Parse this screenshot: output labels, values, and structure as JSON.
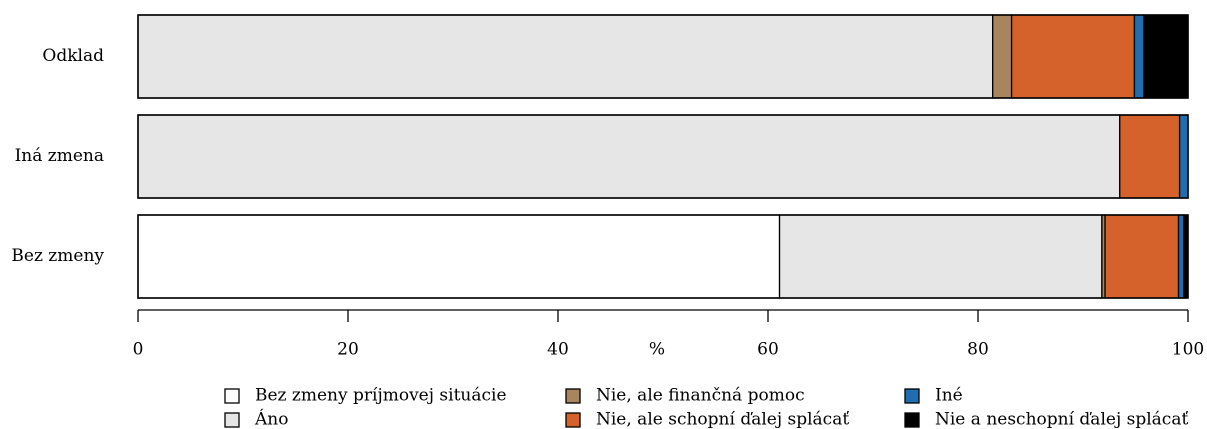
{
  "chart_data": {
    "type": "stacked-barh",
    "categories": [
      "Odklad",
      "Iná zmena",
      "Bez zmeny"
    ],
    "series": [
      {
        "name": "Bez zmeny príjmovej situácie",
        "color": "#ffffff",
        "values": [
          0,
          0,
          61.1
        ]
      },
      {
        "name": "Áno",
        "color": "#e6e6e6",
        "values": [
          81.4,
          93.5,
          30.7
        ]
      },
      {
        "name": "Nie, ale finančná pomoc",
        "color": "#a8845f",
        "values": [
          1.8,
          0,
          0.3
        ]
      },
      {
        "name": "Nie, ale schopní ďalej splácať",
        "color": "#d6622b",
        "values": [
          11.7,
          5.7,
          7.0
        ]
      },
      {
        "name": "Iné",
        "color": "#1f6fb0",
        "values": [
          0.9,
          0.8,
          0.5
        ]
      },
      {
        "name": "Nie a neschopní ďalej splácať",
        "color": "#000000",
        "values": [
          4.2,
          0,
          0.4
        ]
      }
    ],
    "xlabel": "%",
    "xlim": [
      0,
      100
    ],
    "xticks": [
      0,
      20,
      40,
      60,
      80,
      100
    ]
  }
}
